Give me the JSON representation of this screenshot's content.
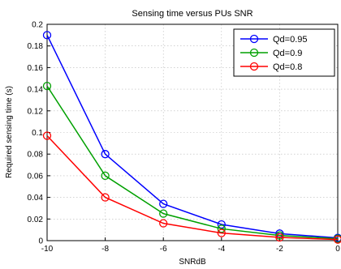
{
  "chart_data": {
    "type": "line",
    "title": "Sensing time versus PUs SNR",
    "xlabel": "SNRdB",
    "ylabel": "Required sensing time (s)",
    "xlim": [
      -10,
      0
    ],
    "ylim": [
      0,
      0.2
    ],
    "xticks": [
      -10,
      -8,
      -6,
      -4,
      -2,
      0
    ],
    "yticks": [
      0,
      0.02,
      0.04,
      0.06,
      0.08,
      0.1,
      0.12,
      0.14,
      0.16,
      0.18,
      0.2
    ],
    "grid": true,
    "legend_position": "top-right",
    "x": [
      -10,
      -8,
      -6,
      -4,
      -2,
      0
    ],
    "series": [
      {
        "name": "Qd=0.95",
        "color": "#0000ff",
        "marker": "circle",
        "values": [
          0.19,
          0.08,
          0.034,
          0.015,
          0.0065,
          0.0025
        ]
      },
      {
        "name": "Qd=0.9",
        "color": "#00a000",
        "marker": "circle",
        "values": [
          0.143,
          0.06,
          0.025,
          0.011,
          0.0048,
          0.0018
        ]
      },
      {
        "name": "Qd=0.8",
        "color": "#ff0000",
        "marker": "circle",
        "values": [
          0.097,
          0.04,
          0.016,
          0.007,
          0.003,
          0.001
        ]
      }
    ]
  }
}
